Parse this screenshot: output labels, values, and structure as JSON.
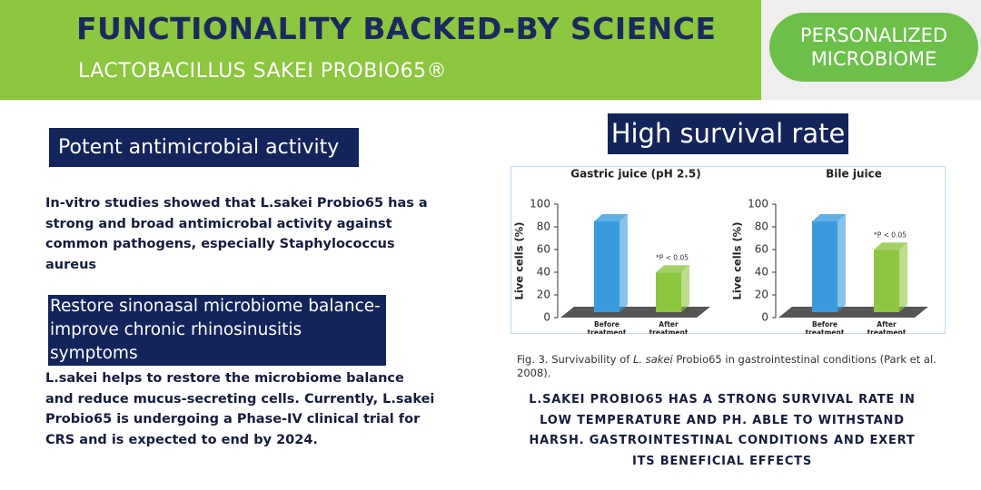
{
  "header": {
    "title": "FUNCTIONALITY BACKED-BY SCIENCE",
    "subtitle": "LACTOBACILLUS SAKEI PROBIO65®",
    "badge": "PERSONALIZED MICROBIOME"
  },
  "sections": [
    {
      "heading": "Potent antimicrobial activity",
      "text": "In-vitro studies showed that L.sakei Probio65 has a strong and broad antimicrobal activity against common pathogens, especially Staphylococcus aureus"
    },
    {
      "heading": "Restore sinonasal microbiome balance-improve chronic rhinosinusitis symptoms",
      "text": "L.sakei helps to restore the microbiome balance and reduce mucus-secreting cells. Currently, L.sakei Probio65 is undergoing a Phase-IV clinical trial for CRS and is expected to end by 2024."
    }
  ],
  "survival": {
    "heading": "High survival rate",
    "caption": [
      "Fig. 3. Survivability of ",
      "L. sakei",
      " Probio65 in gastrointestinal conditions (Park et al. 2008)."
    ],
    "summary": "L.SAKEI PROBIO65 HAS A STRONG SURVIVAL RATE IN LOW TEMPERATURE AND PH. ABLE TO WITHSTAND HARSH. GASTROINTESTINAL CONDITIONS AND EXERT ITS BENEFICIAL EFFECTS"
  },
  "chart_data": [
    {
      "type": "bar",
      "title": "Gastric juice (pH 2.5)",
      "ylabel": "Live cells (%)",
      "categories": [
        "Before treatment",
        "After treatment"
      ],
      "values": [
        80,
        35
      ],
      "colors": [
        "#3a9bdc",
        "#8dc63f"
      ],
      "annotation": "*P < 0.05",
      "ylim": [
        0,
        100
      ],
      "yticks": [
        0,
        20,
        40,
        60,
        80,
        100
      ]
    },
    {
      "type": "bar",
      "title": "Bile juice",
      "ylabel": "Live cells (%)",
      "categories": [
        "Before treatment",
        "After treatment"
      ],
      "values": [
        80,
        55
      ],
      "colors": [
        "#3a9bdc",
        "#8dc63f"
      ],
      "annotation": "*P < 0.05",
      "ylim": [
        0,
        100
      ],
      "yticks": [
        0,
        20,
        40,
        60,
        80,
        100
      ]
    }
  ]
}
